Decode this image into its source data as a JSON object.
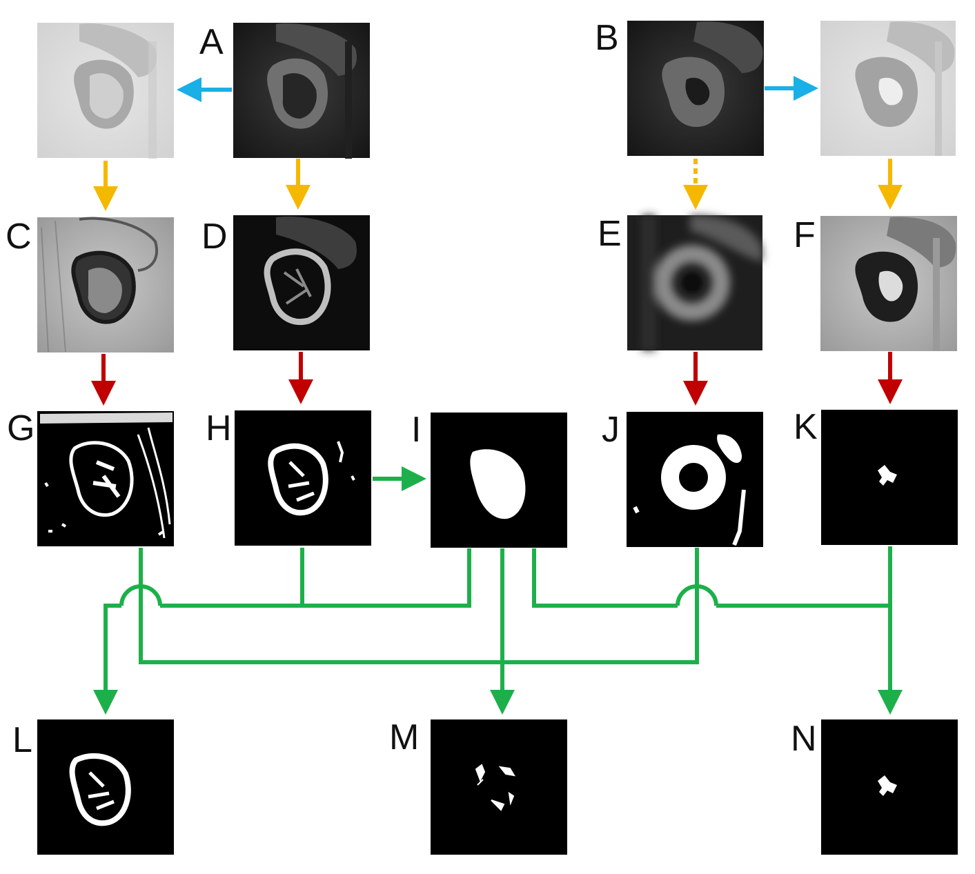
{
  "figure": {
    "panels": [
      {
        "id": "A",
        "label": "A",
        "style": "mri-dark"
      },
      {
        "id": "B",
        "label": "B",
        "style": "mri-dark-2"
      },
      {
        "id": "A-inverted",
        "label": "",
        "style": "mri-inverted"
      },
      {
        "id": "B-inverted",
        "label": "",
        "style": "mri-inverted-2"
      },
      {
        "id": "C",
        "label": "C",
        "style": "mri-enhanced-light"
      },
      {
        "id": "D",
        "label": "D",
        "style": "mri-enhanced-dark"
      },
      {
        "id": "E",
        "label": "E",
        "style": "mri-blurred"
      },
      {
        "id": "F",
        "label": "F",
        "style": "mri-enhanced-light-2"
      },
      {
        "id": "G",
        "label": "G",
        "style": "binary-edges"
      },
      {
        "id": "H",
        "label": "H",
        "style": "binary-cortex"
      },
      {
        "id": "I",
        "label": "I",
        "style": "binary-solid-kidney"
      },
      {
        "id": "J",
        "label": "J",
        "style": "binary-ring"
      },
      {
        "id": "K",
        "label": "K",
        "style": "binary-small-blob"
      },
      {
        "id": "L",
        "label": "L",
        "style": "binary-cortex-clean"
      },
      {
        "id": "M",
        "label": "M",
        "style": "binary-medulla"
      },
      {
        "id": "N",
        "label": "N",
        "style": "binary-small-blob"
      }
    ],
    "arrow_colors": {
      "inversion": "#1AAFE6",
      "enhancement": "#F5B800",
      "thresholding": "#C00000",
      "combination": "#1DB04A"
    }
  }
}
